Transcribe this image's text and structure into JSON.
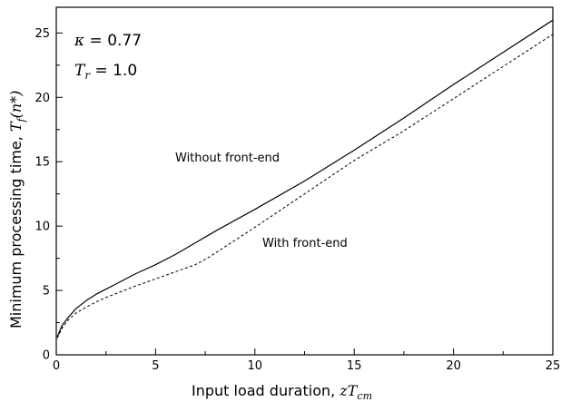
{
  "chart_data": {
    "type": "line",
    "title": "",
    "xlabel": "Input load duration, ",
    "xlabel_math": {
      "var": "zT",
      "sub": "cm"
    },
    "ylabel": "Minimum processing time, ",
    "ylabel_math": {
      "var": "T",
      "sub": "f",
      "tail": "(n*)"
    },
    "xlim": [
      0,
      25
    ],
    "ylim": [
      0,
      27
    ],
    "xticks": [
      "0",
      "5",
      "10",
      "15",
      "20",
      "25"
    ],
    "yticks": [
      "0",
      "5",
      "10",
      "15",
      "20",
      "25"
    ],
    "grid": false,
    "legend": "none",
    "annotations": {
      "kappa": {
        "symbol": "κ",
        "value": " = 0.77"
      },
      "tr": {
        "symbol": "T",
        "sub": "r",
        "value": " = 1.0"
      },
      "without_label": "Without front-end",
      "with_label": "With front-end"
    },
    "series": [
      {
        "style": "solid",
        "x": [
          0.05,
          0.3,
          0.6,
          1,
          1.5,
          2,
          2.5,
          3,
          4,
          5,
          6,
          7,
          8,
          10,
          12.5,
          15,
          17.5,
          20,
          22.5,
          25
        ],
        "y": [
          1.4,
          2.3,
          2.9,
          3.6,
          4.2,
          4.7,
          5.1,
          5.5,
          6.3,
          7.0,
          7.8,
          8.7,
          9.6,
          11.3,
          13.5,
          15.9,
          18.4,
          21.0,
          23.5,
          26.0
        ]
      },
      {
        "style": "dashed",
        "x": [
          0.05,
          0.3,
          0.6,
          1,
          1.5,
          2,
          2.5,
          3,
          4,
          5,
          6,
          7,
          7.6,
          8.5,
          10,
          12.5,
          15,
          17.5,
          20,
          22.5,
          25
        ],
        "y": [
          1.3,
          2.1,
          2.7,
          3.25,
          3.7,
          4.1,
          4.45,
          4.75,
          5.35,
          5.9,
          6.45,
          7.0,
          7.5,
          8.4,
          9.9,
          12.5,
          15.1,
          17.4,
          19.9,
          22.4,
          24.9
        ]
      }
    ]
  }
}
